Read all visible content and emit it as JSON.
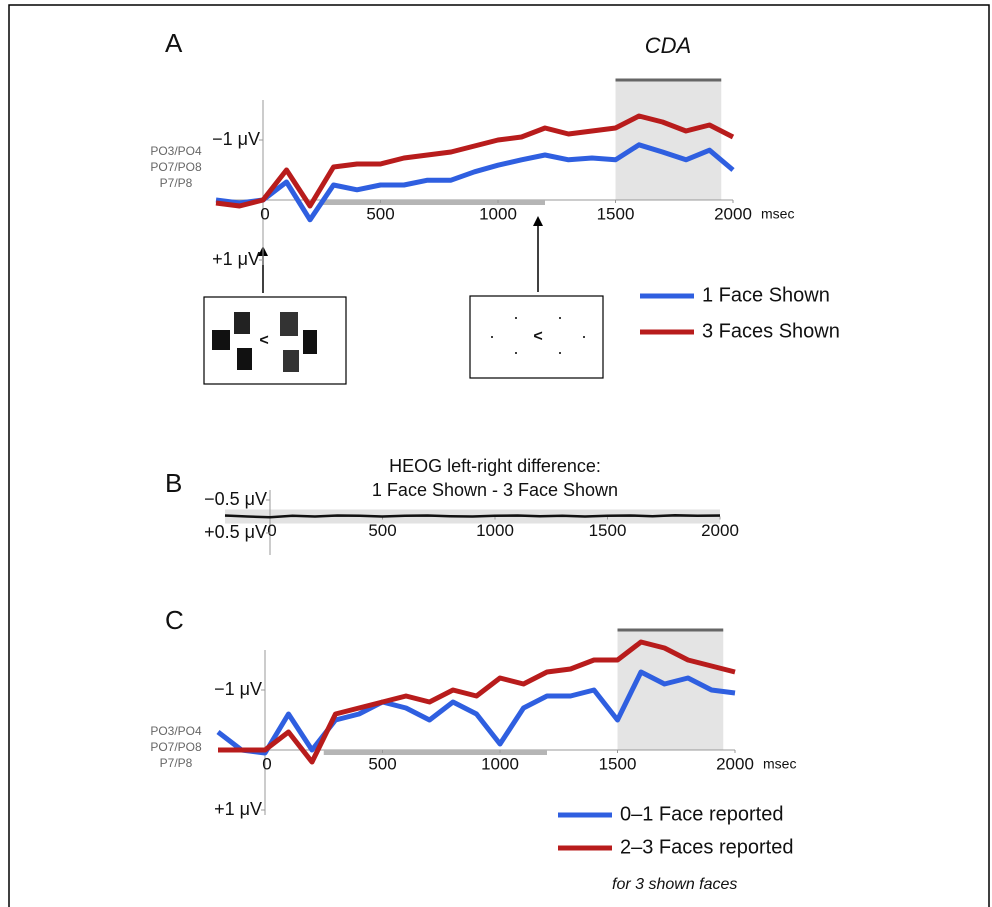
{
  "chart_data": [
    {
      "type": "line",
      "panel_label": "A",
      "window_label": "CDA",
      "channels": [
        "PO3/PO4",
        "PO7/PO8",
        "P7/P8"
      ],
      "x_label": "msec",
      "x": [
        -200,
        -100,
        0,
        100,
        200,
        300,
        400,
        500,
        600,
        700,
        800,
        900,
        1000,
        1100,
        1200,
        1300,
        1400,
        1500,
        1600,
        1700,
        1800,
        1900,
        2000
      ],
      "series": [
        {
          "name": "1 Face Shown",
          "color": "#2f5fe0",
          "values": [
            0,
            0.05,
            0,
            -0.3,
            0.33,
            -0.25,
            -0.17,
            -0.25,
            -0.25,
            -0.33,
            -0.33,
            -0.47,
            -0.58,
            -0.67,
            -0.75,
            -0.67,
            -0.7,
            -0.67,
            -0.92,
            -0.8,
            -0.67,
            -0.83,
            -0.5
          ]
        },
        {
          "name": "3 Faces Shown",
          "color": "#b81c1c",
          "values": [
            0.05,
            0.1,
            0,
            -0.5,
            0.1,
            -0.55,
            -0.6,
            -0.6,
            -0.7,
            -0.75,
            -0.8,
            -0.9,
            -1.0,
            -1.05,
            -1.2,
            -1.1,
            -1.15,
            -1.2,
            -1.4,
            -1.3,
            -1.15,
            -1.25,
            -1.05
          ]
        }
      ],
      "xlim": [
        -200,
        2000
      ],
      "ylim": [
        1,
        -2
      ],
      "xticks": [
        0,
        500,
        1000,
        1500,
        2000
      ],
      "yticks": [
        {
          "value": -1,
          "label": "−1 μV"
        },
        {
          "value": 1,
          "label": "+1 μV"
        }
      ],
      "cda_window": [
        1500,
        1950
      ],
      "baseline_bar": [
        250,
        1200
      ]
    },
    {
      "type": "line",
      "panel_label": "B",
      "title": [
        "HEOG left-right difference:",
        "1 Face Shown - 3 Face Shown"
      ],
      "x": [
        -200,
        -100,
        0,
        100,
        200,
        300,
        400,
        500,
        600,
        700,
        800,
        900,
        1000,
        1100,
        1200,
        1300,
        1400,
        1500,
        1600,
        1700,
        1800,
        1900,
        2000
      ],
      "series": [
        {
          "color": "#111111",
          "values": [
            -0.03,
            0,
            0.02,
            -0.02,
            0,
            -0.03,
            -0.02,
            0,
            -0.02,
            -0.03,
            -0.01,
            0,
            -0.02,
            -0.03,
            -0.01,
            -0.02,
            0,
            -0.02,
            -0.03,
            -0.01,
            -0.04,
            -0.02,
            -0.03
          ]
        }
      ],
      "xlim": [
        -200,
        2000
      ],
      "ylim": [
        0.5,
        -0.5
      ],
      "xticks": [
        0,
        500,
        1000,
        1500,
        2000
      ],
      "yticks": [
        {
          "value": -0.5,
          "label": "−0.5 μV"
        },
        {
          "value": 0.5,
          "label": "+0.5 μV"
        }
      ]
    },
    {
      "type": "line",
      "panel_label": "C",
      "channels": [
        "PO3/PO4",
        "PO7/PO8",
        "P7/P8"
      ],
      "x_label": "msec",
      "note": "for 3 shown faces",
      "x": [
        -200,
        -100,
        0,
        100,
        200,
        300,
        400,
        500,
        600,
        700,
        800,
        900,
        1000,
        1100,
        1200,
        1300,
        1400,
        1500,
        1600,
        1700,
        1800,
        1900,
        2000
      ],
      "series": [
        {
          "name": "0–1 Face reported",
          "color": "#2f5fe0",
          "values": [
            -0.3,
            0,
            0.05,
            -0.6,
            0,
            -0.5,
            -0.6,
            -0.8,
            -0.7,
            -0.5,
            -0.8,
            -0.6,
            -0.1,
            -0.7,
            -0.9,
            -0.9,
            -1.0,
            -0.5,
            -1.3,
            -1.1,
            -1.2,
            -1.0,
            -0.95
          ]
        },
        {
          "name": "2–3 Faces reported",
          "color": "#b81c1c",
          "values": [
            0,
            0,
            0,
            -0.3,
            0.2,
            -0.6,
            -0.7,
            -0.8,
            -0.9,
            -0.8,
            -1.0,
            -0.9,
            -1.2,
            -1.1,
            -1.3,
            -1.35,
            -1.5,
            -1.5,
            -1.8,
            -1.7,
            -1.5,
            -1.4,
            -1.3
          ]
        }
      ],
      "xlim": [
        -200,
        2000
      ],
      "ylim": [
        1,
        -2
      ],
      "xticks": [
        0,
        500,
        1000,
        1500,
        2000
      ],
      "yticks": [
        {
          "value": -1,
          "label": "−1 μV"
        },
        {
          "value": 1,
          "label": "+1 μV"
        }
      ],
      "cda_window": [
        1500,
        1950
      ],
      "baseline_bar": [
        250,
        1200
      ]
    }
  ]
}
